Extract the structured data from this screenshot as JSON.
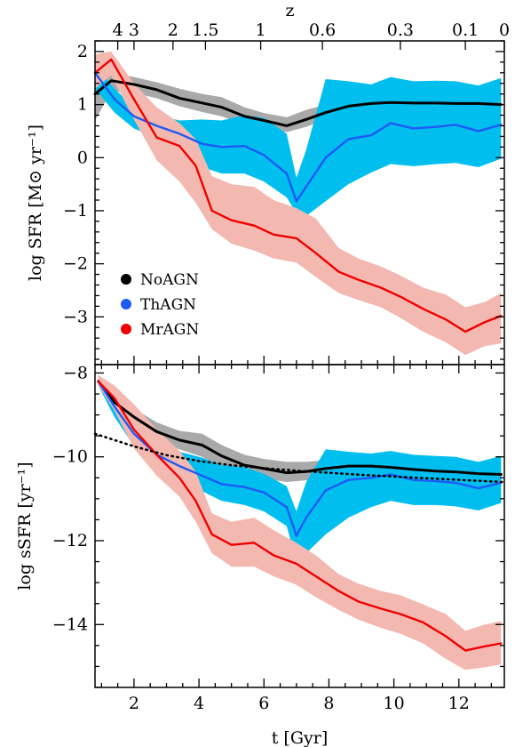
{
  "chart_data": [
    {
      "type": "line",
      "panel": "top",
      "ylabel": "log SFR [M⊙ yr⁻¹]",
      "xlim": [
        0.8,
        13.4
      ],
      "ylim": [
        -3.9,
        2.2
      ],
      "yticks": [
        -3,
        -2,
        -1,
        0,
        1,
        2
      ],
      "yticklabels": [
        "−3",
        "−2",
        "−1",
        "0",
        "1",
        "2"
      ],
      "top_axis": {
        "label": "z",
        "ticks": [
          {
            "t": 1.5,
            "label": "4"
          },
          {
            "t": 2.0,
            "label": "3"
          },
          {
            "t": 3.2,
            "label": "2"
          },
          {
            "t": 4.2,
            "label": "1.5"
          },
          {
            "t": 5.9,
            "label": "1"
          },
          {
            "t": 7.8,
            "label": "0.6"
          },
          {
            "t": 10.2,
            "label": "0.3"
          },
          {
            "t": 12.2,
            "label": "0.1"
          },
          {
            "t": 13.4,
            "label": "0"
          }
        ]
      },
      "legend": {
        "position": "lower-left",
        "entries": [
          {
            "label": "NoAGN",
            "color": "#000000"
          },
          {
            "label": "ThAGN",
            "color": "#1f5af5"
          },
          {
            "label": "MrAGN",
            "color": "#f00000"
          }
        ]
      },
      "series": [
        {
          "name": "NoAGN",
          "color": "#000000",
          "band_color": "#a9a9a9",
          "x": [
            0.8,
            1.3,
            2.0,
            2.7,
            3.4,
            4.1,
            4.7,
            5.4,
            6.0,
            6.7,
            7.3,
            7.9,
            8.6,
            9.3,
            9.9,
            10.6,
            11.3,
            11.9,
            12.6,
            13.3
          ],
          "y": [
            1.2,
            1.45,
            1.38,
            1.28,
            1.12,
            1.03,
            0.95,
            0.78,
            0.7,
            0.6,
            0.72,
            0.85,
            0.97,
            1.02,
            1.04,
            1.03,
            1.03,
            1.02,
            1.02,
            1.0
          ],
          "y_low": [
            0.7,
            1.25,
            1.22,
            1.12,
            0.97,
            0.86,
            0.78,
            0.62,
            0.58,
            0.48,
            0.58,
            0.72,
            0.82,
            0.88,
            0.88,
            0.86,
            0.86,
            0.85,
            0.85,
            0.82
          ],
          "y_high": [
            1.45,
            1.6,
            1.52,
            1.42,
            1.3,
            1.2,
            1.14,
            0.95,
            0.84,
            0.76,
            0.9,
            1.0,
            1.12,
            1.2,
            1.22,
            1.22,
            1.22,
            1.24,
            1.24,
            1.22
          ]
        },
        {
          "name": "ThAGN",
          "color": "#1f5af5",
          "band_color": "#00bfef",
          "x": [
            0.8,
            1.4,
            2.0,
            2.7,
            3.4,
            4.1,
            4.7,
            5.4,
            6.0,
            6.7,
            7.0,
            7.3,
            7.9,
            8.6,
            9.3,
            9.9,
            10.6,
            11.3,
            11.9,
            12.6,
            13.3
          ],
          "y": [
            1.6,
            1.1,
            0.78,
            0.6,
            0.45,
            0.26,
            0.2,
            0.22,
            0.05,
            -0.3,
            -0.82,
            -0.55,
            0.0,
            0.35,
            0.42,
            0.65,
            0.55,
            0.58,
            0.62,
            0.5,
            0.62
          ],
          "y_low": [
            1.3,
            0.85,
            0.55,
            0.38,
            0.22,
            -0.18,
            -0.3,
            -0.3,
            -0.45,
            -0.75,
            -1.05,
            -1.1,
            -0.82,
            -0.5,
            -0.28,
            -0.12,
            -0.16,
            -0.12,
            -0.1,
            -0.18,
            -0.02
          ],
          "y_high": [
            1.75,
            1.3,
            0.95,
            0.8,
            0.7,
            0.72,
            0.7,
            0.8,
            0.75,
            0.45,
            -0.38,
            0.15,
            1.48,
            1.44,
            1.38,
            1.52,
            1.44,
            1.45,
            1.44,
            1.36,
            1.5
          ]
        },
        {
          "name": "MrAGN",
          "color": "#f00000",
          "band_color": "#f3b8b0",
          "x": [
            0.8,
            1.3,
            2.0,
            2.7,
            3.4,
            3.9,
            4.4,
            5.0,
            5.7,
            6.3,
            7.0,
            7.6,
            8.3,
            8.9,
            9.6,
            10.2,
            10.9,
            11.6,
            12.2,
            12.8,
            13.3
          ],
          "y": [
            1.6,
            1.85,
            1.1,
            0.38,
            0.22,
            -0.15,
            -1.0,
            -1.18,
            -1.28,
            -1.45,
            -1.52,
            -1.8,
            -2.15,
            -2.3,
            -2.45,
            -2.62,
            -2.85,
            -3.05,
            -3.28,
            -3.1,
            -2.98
          ],
          "y_low": [
            1.3,
            1.55,
            0.72,
            -0.05,
            -0.45,
            -0.85,
            -1.35,
            -1.62,
            -1.75,
            -1.9,
            -1.98,
            -2.25,
            -2.55,
            -2.68,
            -2.82,
            -3.02,
            -3.28,
            -3.48,
            -3.72,
            -3.55,
            -3.5
          ],
          "y_high": [
            1.95,
            2.0,
            1.4,
            0.95,
            0.65,
            0.35,
            -0.35,
            -0.5,
            -0.55,
            -0.8,
            -0.95,
            -1.15,
            -1.7,
            -1.9,
            -2.05,
            -2.22,
            -2.45,
            -2.58,
            -2.82,
            -2.72,
            -2.55
          ]
        }
      ]
    },
    {
      "type": "line",
      "panel": "bottom",
      "xlabel": "t [Gyr]",
      "ylabel": "log sSFR [yr⁻¹]",
      "xlim": [
        0.8,
        13.4
      ],
      "ylim": [
        -15.5,
        -7.8
      ],
      "xticks": [
        2,
        4,
        6,
        8,
        10,
        12
      ],
      "xticklabels": [
        "2",
        "4",
        "6",
        "8",
        "10",
        "12"
      ],
      "yticks": [
        -14,
        -12,
        -10,
        -8
      ],
      "yticklabels": [
        "−14",
        "−12",
        "−10",
        "−8"
      ],
      "series": [
        {
          "name": "NoAGN",
          "color": "#000000",
          "band_color": "#a9a9a9",
          "x": [
            0.9,
            1.4,
            2.0,
            2.7,
            3.4,
            4.1,
            4.7,
            5.4,
            6.0,
            6.7,
            7.3,
            7.9,
            8.6,
            9.3,
            9.9,
            10.6,
            11.3,
            11.9,
            12.6,
            13.3
          ],
          "y": [
            -8.2,
            -8.7,
            -9.05,
            -9.4,
            -9.6,
            -9.72,
            -9.98,
            -10.2,
            -10.28,
            -10.38,
            -10.35,
            -10.28,
            -10.22,
            -10.22,
            -10.25,
            -10.3,
            -10.34,
            -10.36,
            -10.4,
            -10.42
          ],
          "y_low": [
            -8.3,
            -8.85,
            -9.25,
            -9.6,
            -9.82,
            -10.0,
            -10.25,
            -10.45,
            -10.52,
            -10.6,
            -10.56,
            -10.45,
            -10.38,
            -10.38,
            -10.42,
            -10.48,
            -10.52,
            -10.55,
            -10.58,
            -10.6
          ],
          "y_high": [
            -8.1,
            -8.55,
            -8.85,
            -9.18,
            -9.38,
            -9.45,
            -9.72,
            -9.95,
            -10.05,
            -10.12,
            -10.12,
            -10.08,
            -10.02,
            -10.02,
            -10.05,
            -10.12,
            -10.14,
            -10.16,
            -10.18,
            -10.2
          ]
        },
        {
          "name": "ThAGN",
          "color": "#1f5af5",
          "band_color": "#00bfef",
          "x": [
            0.9,
            1.4,
            2.0,
            2.7,
            3.4,
            4.1,
            4.7,
            5.4,
            6.0,
            6.7,
            7.0,
            7.3,
            7.9,
            8.6,
            9.3,
            9.9,
            10.6,
            11.3,
            11.9,
            12.6,
            13.3
          ],
          "y": [
            -8.2,
            -8.8,
            -9.45,
            -9.95,
            -10.22,
            -10.45,
            -10.65,
            -10.72,
            -10.85,
            -11.2,
            -11.88,
            -11.45,
            -10.8,
            -10.55,
            -10.5,
            -10.42,
            -10.55,
            -10.58,
            -10.62,
            -10.75,
            -10.62
          ],
          "y_low": [
            -8.3,
            -9.05,
            -9.75,
            -10.25,
            -10.55,
            -10.82,
            -11.05,
            -11.15,
            -11.3,
            -11.65,
            -12.5,
            -12.3,
            -11.85,
            -11.45,
            -11.2,
            -11.05,
            -11.15,
            -11.15,
            -11.18,
            -11.28,
            -11.1
          ],
          "y_high": [
            -8.1,
            -8.55,
            -9.15,
            -9.62,
            -9.88,
            -10.02,
            -10.2,
            -10.25,
            -10.4,
            -10.7,
            -11.3,
            -10.6,
            -9.82,
            -9.88,
            -9.92,
            -9.86,
            -9.95,
            -9.98,
            -10.0,
            -10.12,
            -9.98
          ]
        },
        {
          "name": "MrAGN",
          "color": "#f00000",
          "band_color": "#f3b8b0",
          "x": [
            0.9,
            1.4,
            2.0,
            2.7,
            3.4,
            3.9,
            4.4,
            5.0,
            5.7,
            6.3,
            7.0,
            7.6,
            8.3,
            8.9,
            9.6,
            10.2,
            10.9,
            11.6,
            12.2,
            12.8,
            13.3
          ],
          "y": [
            -8.2,
            -8.6,
            -9.35,
            -9.95,
            -10.5,
            -11.05,
            -11.85,
            -12.1,
            -12.05,
            -12.35,
            -12.55,
            -12.85,
            -13.2,
            -13.45,
            -13.62,
            -13.75,
            -13.95,
            -14.28,
            -14.62,
            -14.52,
            -14.45
          ],
          "y_low": [
            -8.3,
            -8.9,
            -9.8,
            -10.45,
            -10.95,
            -11.55,
            -12.3,
            -12.62,
            -12.62,
            -12.85,
            -13.05,
            -13.35,
            -13.65,
            -13.88,
            -14.08,
            -14.22,
            -14.45,
            -14.82,
            -15.08,
            -15.02,
            -14.95
          ],
          "y_high": [
            -8.05,
            -8.3,
            -8.75,
            -9.35,
            -9.85,
            -10.35,
            -11.35,
            -11.55,
            -11.45,
            -11.75,
            -12.05,
            -12.35,
            -12.8,
            -13.02,
            -13.2,
            -13.3,
            -13.52,
            -13.75,
            -14.15,
            -14.0,
            -13.92
          ]
        },
        {
          "name": "",
          "color": "#000000",
          "dashed": true,
          "x": [
            0.8,
            2.0,
            3.0,
            4.0,
            5.0,
            6.0,
            7.0,
            8.0,
            9.0,
            10.0,
            11.0,
            12.0,
            13.4
          ],
          "y": [
            -9.45,
            -9.75,
            -9.96,
            -10.1,
            -10.2,
            -10.27,
            -10.33,
            -10.38,
            -10.43,
            -10.47,
            -10.51,
            -10.55,
            -10.6
          ]
        }
      ]
    }
  ]
}
